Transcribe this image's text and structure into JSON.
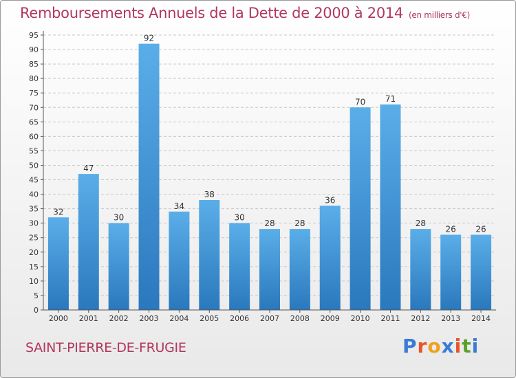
{
  "header": {
    "title": "Remboursements Annuels de la Dette de 2000 à 2014",
    "unit": "(en milliers d'€)"
  },
  "footer": {
    "town": "SAINT-PIERRE-DE-FRUGIE",
    "logo_text": "Proxiti"
  },
  "colors": {
    "bar_light": "#5aaee8",
    "bar_dark": "#2a78bd",
    "title": "#b0385c",
    "logo": [
      "#3a7bd5",
      "#e8542a",
      "#f0a020",
      "#3a7bd5",
      "#e8542a",
      "#5aa02c",
      "#3a7bd5"
    ]
  },
  "chart_data": {
    "type": "bar",
    "title": "Remboursements Annuels de la Dette de 2000 à 2014",
    "subtitle": "(en milliers d'€)",
    "categories": [
      "2000",
      "2001",
      "2002",
      "2003",
      "2004",
      "2005",
      "2006",
      "2007",
      "2008",
      "2009",
      "2010",
      "2011",
      "2012",
      "2013",
      "2014"
    ],
    "values": [
      32,
      47,
      30,
      92,
      34,
      38,
      30,
      28,
      28,
      36,
      70,
      71,
      28,
      26,
      26
    ],
    "ylim": [
      0,
      95
    ],
    "yticks": [
      0,
      5,
      10,
      15,
      20,
      25,
      30,
      35,
      40,
      45,
      50,
      55,
      60,
      65,
      70,
      75,
      80,
      85,
      90,
      95
    ],
    "grid": true,
    "legend": "none"
  }
}
